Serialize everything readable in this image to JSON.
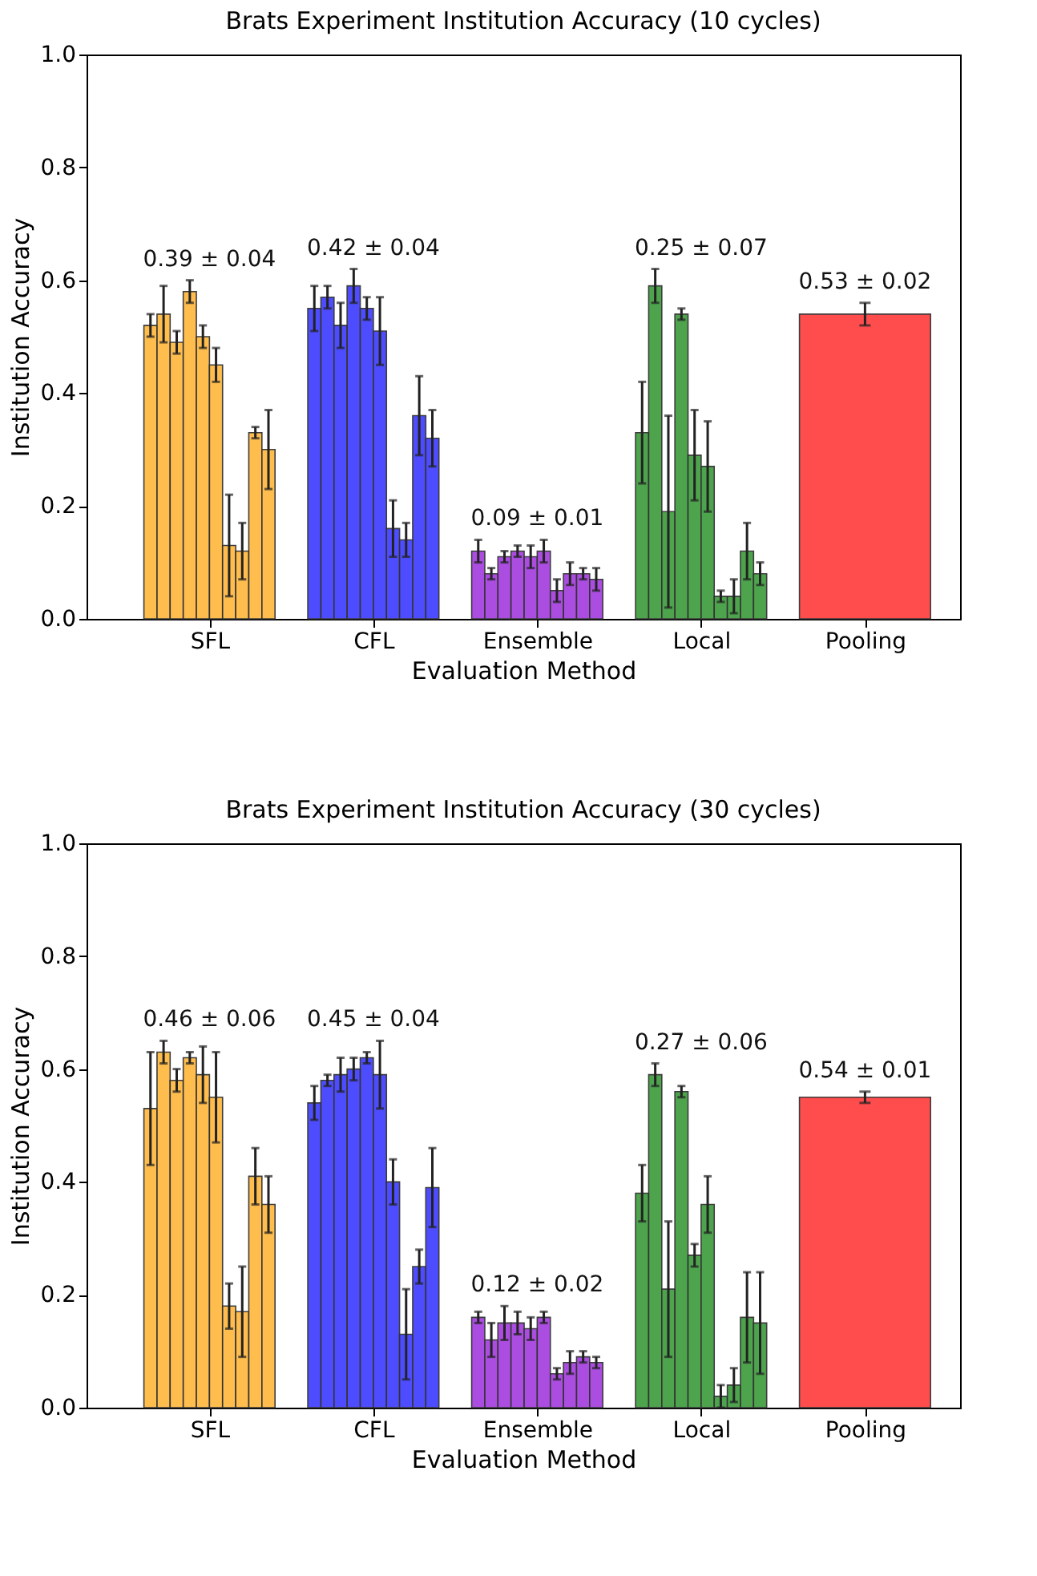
{
  "chart_data": [
    {
      "type": "bar",
      "title": "Brats Experiment Institution Accuracy (10 cycles)",
      "xlabel": "Evaluation Method",
      "ylabel": "Institution Accuracy",
      "ylim": [
        0,
        1
      ],
      "categories": [
        "SFL",
        "CFL",
        "Ensemble",
        "Local",
        "Pooling"
      ],
      "yticks": [
        {
          "value": 0,
          "label": "0.0"
        },
        {
          "value": 0.2,
          "label": "0.2"
        },
        {
          "value": 0.4,
          "label": "0.4"
        },
        {
          "value": 0.6,
          "label": "0.6"
        },
        {
          "value": 0.8,
          "label": "0.8"
        },
        {
          "value": 1,
          "label": "1.0"
        }
      ],
      "series": [
        {
          "colors": [
            "#ffba45",
            "#4444ff",
            "#a844e0",
            "#44a044",
            null
          ],
          "values": [
            0.52,
            0.55,
            0.12,
            0.33,
            null
          ],
          "errors": [
            0.02,
            0.04,
            0.02,
            0.09,
            null
          ]
        },
        {
          "colors": [
            "#ffba45",
            "#4444ff",
            "#a844e0",
            "#44a044",
            null
          ],
          "values": [
            0.54,
            0.57,
            0.08,
            0.59,
            null
          ],
          "errors": [
            0.05,
            0.02,
            0.01,
            0.03,
            null
          ]
        },
        {
          "colors": [
            "#ffba45",
            "#4444ff",
            "#a844e0",
            "#44a044",
            null
          ],
          "values": [
            0.49,
            0.52,
            0.11,
            0.19,
            null
          ],
          "errors": [
            0.02,
            0.04,
            0.01,
            0.17,
            null
          ]
        },
        {
          "colors": [
            "#ffba45",
            "#4444ff",
            "#a844e0",
            "#44a044",
            null
          ],
          "values": [
            0.58,
            0.59,
            0.12,
            0.54,
            null
          ],
          "errors": [
            0.02,
            0.03,
            0.01,
            0.01,
            null
          ]
        },
        {
          "colors": [
            "#ffba45",
            "#4444ff",
            "#a844e0",
            "#44a044",
            null
          ],
          "values": [
            0.5,
            0.55,
            0.11,
            0.29,
            null
          ],
          "errors": [
            0.02,
            0.02,
            0.02,
            0.08,
            null
          ]
        },
        {
          "colors": [
            "#ffba45",
            "#4444ff",
            "#a844e0",
            "#44a044",
            null
          ],
          "values": [
            0.45,
            0.51,
            0.12,
            0.27,
            null
          ],
          "errors": [
            0.03,
            0.06,
            0.02,
            0.08,
            null
          ]
        },
        {
          "colors": [
            "#ffba45",
            "#4444ff",
            "#a844e0",
            "#44a044",
            null
          ],
          "values": [
            0.13,
            0.16,
            0.05,
            0.04,
            null
          ],
          "errors": [
            0.09,
            0.05,
            0.02,
            0.01,
            null
          ]
        },
        {
          "colors": [
            "#ffba45",
            "#4444ff",
            "#a844e0",
            "#44a044",
            null
          ],
          "values": [
            0.12,
            0.14,
            0.08,
            0.04,
            null
          ],
          "errors": [
            0.05,
            0.03,
            0.02,
            0.03,
            null
          ]
        },
        {
          "colors": [
            "#ffba45",
            "#4444ff",
            "#a844e0",
            "#44a044",
            null
          ],
          "values": [
            0.33,
            0.36,
            0.08,
            0.12,
            null
          ],
          "errors": [
            0.01,
            0.07,
            0.01,
            0.05,
            null
          ]
        },
        {
          "colors": [
            "#ffba45",
            "#4444ff",
            "#a844e0",
            "#44a044",
            null
          ],
          "values": [
            0.3,
            0.32,
            0.07,
            0.08,
            null
          ],
          "errors": [
            0.07,
            0.05,
            0.02,
            0.02,
            null
          ]
        },
        {
          "colors": [
            null,
            null,
            null,
            null,
            "#ff4444"
          ],
          "values": [
            null,
            null,
            null,
            null,
            0.54
          ],
          "errors": [
            null,
            null,
            null,
            null,
            0.02
          ]
        }
      ],
      "annotations": [
        "0.39 ± 0.04",
        "0.42 ± 0.04",
        "0.09 ± 0.01",
        "0.25 ± 0.07",
        "0.53 ± 0.02"
      ]
    },
    {
      "type": "bar",
      "title": "Brats Experiment Institution Accuracy (30 cycles)",
      "xlabel": "Evaluation Method",
      "ylabel": "Institution Accuracy",
      "ylim": [
        0,
        1
      ],
      "categories": [
        "SFL",
        "CFL",
        "Ensemble",
        "Local",
        "Pooling"
      ],
      "yticks": [
        {
          "value": 0,
          "label": "0.0"
        },
        {
          "value": 0.2,
          "label": "0.2"
        },
        {
          "value": 0.4,
          "label": "0.4"
        },
        {
          "value": 0.6,
          "label": "0.6"
        },
        {
          "value": 0.8,
          "label": "0.8"
        },
        {
          "value": 1,
          "label": "1.0"
        }
      ],
      "series": [
        {
          "colors": [
            "#ffba45",
            "#4444ff",
            "#a844e0",
            "#44a044",
            null
          ],
          "values": [
            0.53,
            0.54,
            0.16,
            0.38,
            null
          ],
          "errors": [
            0.1,
            0.03,
            0.01,
            0.05,
            null
          ]
        },
        {
          "colors": [
            "#ffba45",
            "#4444ff",
            "#a844e0",
            "#44a044",
            null
          ],
          "values": [
            0.63,
            0.58,
            0.12,
            0.59,
            null
          ],
          "errors": [
            0.02,
            0.01,
            0.03,
            0.02,
            null
          ]
        },
        {
          "colors": [
            "#ffba45",
            "#4444ff",
            "#a844e0",
            "#44a044",
            null
          ],
          "values": [
            0.58,
            0.59,
            0.15,
            0.21,
            null
          ],
          "errors": [
            0.02,
            0.03,
            0.03,
            0.12,
            null
          ]
        },
        {
          "colors": [
            "#ffba45",
            "#4444ff",
            "#a844e0",
            "#44a044",
            null
          ],
          "values": [
            0.62,
            0.6,
            0.15,
            0.56,
            null
          ],
          "errors": [
            0.01,
            0.02,
            0.02,
            0.01,
            null
          ]
        },
        {
          "colors": [
            "#ffba45",
            "#4444ff",
            "#a844e0",
            "#44a044",
            null
          ],
          "values": [
            0.59,
            0.62,
            0.14,
            0.27,
            null
          ],
          "errors": [
            0.05,
            0.01,
            0.02,
            0.02,
            null
          ]
        },
        {
          "colors": [
            "#ffba45",
            "#4444ff",
            "#a844e0",
            "#44a044",
            null
          ],
          "values": [
            0.55,
            0.59,
            0.16,
            0.36,
            null
          ],
          "errors": [
            0.08,
            0.06,
            0.01,
            0.05,
            null
          ]
        },
        {
          "colors": [
            "#ffba45",
            "#4444ff",
            "#a844e0",
            "#44a044",
            null
          ],
          "values": [
            0.18,
            0.4,
            0.06,
            0.02,
            null
          ],
          "errors": [
            0.04,
            0.04,
            0.01,
            0.02,
            null
          ]
        },
        {
          "colors": [
            "#ffba45",
            "#4444ff",
            "#a844e0",
            "#44a044",
            null
          ],
          "values": [
            0.17,
            0.13,
            0.08,
            0.04,
            null
          ],
          "errors": [
            0.08,
            0.08,
            0.02,
            0.03,
            null
          ]
        },
        {
          "colors": [
            "#ffba45",
            "#4444ff",
            "#a844e0",
            "#44a044",
            null
          ],
          "values": [
            0.41,
            0.25,
            0.09,
            0.16,
            null
          ],
          "errors": [
            0.05,
            0.03,
            0.01,
            0.08,
            null
          ]
        },
        {
          "colors": [
            "#ffba45",
            "#4444ff",
            "#a844e0",
            "#44a044",
            null
          ],
          "values": [
            0.36,
            0.39,
            0.08,
            0.15,
            null
          ],
          "errors": [
            0.05,
            0.07,
            0.01,
            0.09,
            null
          ]
        },
        {
          "colors": [
            null,
            null,
            null,
            null,
            "#ff4444"
          ],
          "values": [
            null,
            null,
            null,
            null,
            0.55
          ],
          "errors": [
            null,
            null,
            null,
            null,
            0.01
          ]
        }
      ],
      "annotations": [
        "0.46 ± 0.06",
        "0.45 ± 0.04",
        "0.12 ± 0.02",
        "0.27 ± 0.06",
        "0.54 ± 0.01"
      ]
    }
  ]
}
